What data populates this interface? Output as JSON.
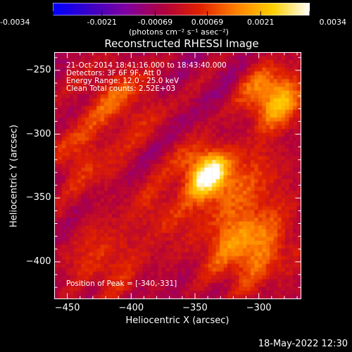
{
  "colorbar": {
    "tick_labels": [
      "-0.0034",
      "-0.0021",
      "-0.00069",
      "0.00069",
      "0.0021",
      "0.0034"
    ],
    "unit_label": "(photons cm⁻² s⁻¹ asec⁻²)",
    "range": [
      -0.0034,
      0.0034
    ],
    "palette": [
      "#0000ff",
      "#3a00c8",
      "#8000a0",
      "#b00040",
      "#e02000",
      "#ff8000",
      "#ffd000",
      "#ffffff"
    ]
  },
  "plot": {
    "title": "Reconstructed RHESSI Image",
    "info_lines": [
      "21-Oct-2014 18:41:16.000 to 18:43:40.000",
      "Detectors: 3F 6F 9F, Att 0",
      "Energy Range: 12.0 - 25.0 keV",
      "Clean     Total counts: 2.52E+03"
    ],
    "peak_label": "Position of Peak = [-340,-331]"
  },
  "chart_data": {
    "type": "heatmap",
    "title": "Reconstructed RHESSI Image",
    "xlabel": "Heliocentric X (arcsec)",
    "ylabel": "Heliocentric Y (arcsec)",
    "xlim": [
      -460,
      -267
    ],
    "ylim": [
      -429,
      -236
    ],
    "xticks": [
      -450,
      -400,
      -350,
      -300
    ],
    "yticks": [
      -250,
      -300,
      -350,
      -400
    ],
    "peak": [
      -340,
      -331
    ],
    "sources": [
      {
        "x": -340,
        "y": -331,
        "amp": 1.0,
        "r": 14
      },
      {
        "x": -288,
        "y": -272,
        "amp": 0.75,
        "r": 16
      },
      {
        "x": -310,
        "y": -385,
        "amp": 0.6,
        "r": 24
      },
      {
        "x": -410,
        "y": -275,
        "amp": 0.35,
        "r": 22
      },
      {
        "x": -440,
        "y": -320,
        "amp": 0.3,
        "r": 18
      },
      {
        "x": -375,
        "y": -360,
        "amp": 0.25,
        "r": 18
      },
      {
        "x": -420,
        "y": -400,
        "amp": 0.3,
        "r": 22
      },
      {
        "x": -300,
        "y": -330,
        "amp": 0.25,
        "r": 18
      }
    ]
  },
  "footer": {
    "timestamp": "18-May-2022 12:30"
  }
}
